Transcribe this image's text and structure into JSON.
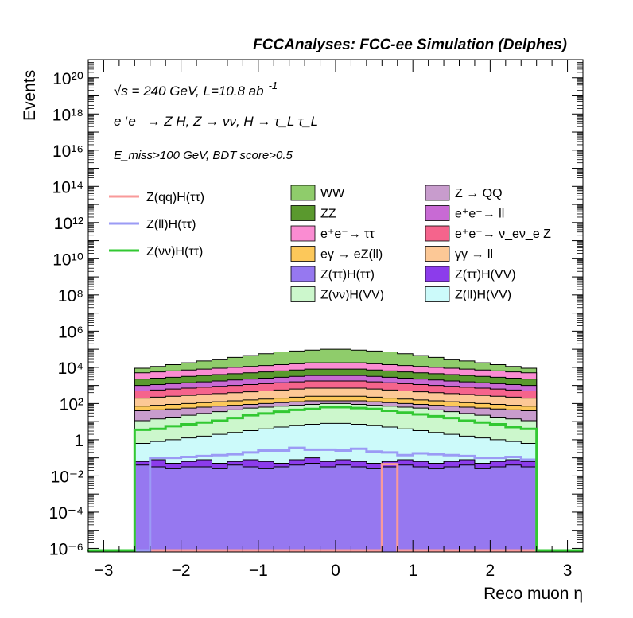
{
  "header": {
    "title": "FCCAnalyses: FCC-ee Simulation (Delphes)",
    "line1": "√s = 240 GeV, L=10.8 ab",
    "line1_sup": "-1",
    "line2": "e⁺e⁻ → Z H, Z → νν, H → τ_L τ_L",
    "line3": "E_miss>100 GeV, BDT score>0.5"
  },
  "chart_data": {
    "type": "bar",
    "stacked": true,
    "log_y": true,
    "xlabel": "Reco muon η",
    "ylabel": "Events",
    "xlim": [
      -3.2,
      3.2
    ],
    "ylim_log10": [
      -6.2,
      21
    ],
    "x_ticks": [
      "−3",
      "−2",
      "−1",
      "0",
      "1",
      "2",
      "3"
    ],
    "y_ticks": [
      "10⁻⁶",
      "10⁻⁴",
      "10⁻²",
      "1",
      "10²",
      "10⁴",
      "10⁶",
      "10⁸",
      "10¹⁰",
      "10¹²",
      "10¹⁴",
      "10¹⁶",
      "10¹⁸",
      "10²⁰"
    ],
    "bin_edges": [
      -2.6,
      -2.4,
      -2.2,
      -2.0,
      -1.8,
      -1.6,
      -1.4,
      -1.2,
      -1.0,
      -0.8,
      -0.6,
      -0.4,
      -0.2,
      0.0,
      0.2,
      0.4,
      0.6,
      0.8,
      1.0,
      1.2,
      1.4,
      1.6,
      1.8,
      2.0,
      2.2,
      2.4,
      2.6
    ],
    "stack_order_bottom_to_top": [
      "Z(ττ)H(ττ)",
      "Z(ττ)H(VV)",
      "Z(ll)H(VV)",
      "Z(νν)H(VV)",
      "Z → QQ",
      "eγ → eZ(ll)",
      "γγ → ll",
      "e⁺e⁻→ ν_eν_e Z",
      "e⁺e⁻→ ll",
      "ZZ",
      "e⁺e⁻→ ττ",
      "WW"
    ],
    "stack_cumulative_log10": [
      [
        -1.4,
        -1.5,
        -1.6,
        -1.5,
        -1.5,
        -1.6,
        -1.4,
        -1.5,
        -1.6,
        -1.5,
        -1.4,
        -1.3,
        -1.5,
        -1.4,
        -1.5,
        -1.6,
        -1.5,
        -1.4,
        -1.5,
        -1.6,
        -1.5,
        -1.4,
        -1.6,
        -1.5,
        -1.4,
        -1.5
      ],
      [
        -1.2,
        -1.1,
        -1.3,
        -1.2,
        -1.1,
        -1.3,
        -1.2,
        -1.1,
        -1.2,
        -1.3,
        -1.1,
        -1.0,
        -1.2,
        -1.1,
        -1.2,
        -1.3,
        -1.2,
        -1.1,
        -1.2,
        -1.3,
        -1.2,
        -1.1,
        -1.3,
        -1.2,
        -1.1,
        -1.2
      ],
      [
        -0.2,
        -0.1,
        0.0,
        0.1,
        0.2,
        0.3,
        0.4,
        0.5,
        0.6,
        0.7,
        0.8,
        0.85,
        0.9,
        0.9,
        0.85,
        0.8,
        0.7,
        0.6,
        0.5,
        0.4,
        0.3,
        0.2,
        0.1,
        0.0,
        -0.1,
        -0.2
      ],
      [
        1.05,
        1.15,
        1.25,
        1.35,
        1.45,
        1.55,
        1.65,
        1.75,
        1.8,
        1.85,
        1.9,
        1.95,
        2.0,
        2.0,
        1.95,
        1.9,
        1.85,
        1.8,
        1.75,
        1.65,
        1.55,
        1.45,
        1.35,
        1.25,
        1.15,
        1.05
      ],
      [
        1.6,
        1.65,
        1.7,
        1.75,
        1.8,
        1.85,
        1.9,
        1.95,
        2.0,
        2.05,
        2.1,
        2.15,
        2.15,
        2.15,
        2.15,
        2.1,
        2.05,
        2.0,
        1.95,
        1.9,
        1.85,
        1.8,
        1.75,
        1.7,
        1.65,
        1.6
      ],
      [
        1.85,
        1.9,
        1.95,
        2.0,
        2.05,
        2.1,
        2.15,
        2.2,
        2.25,
        2.3,
        2.35,
        2.4,
        2.4,
        2.4,
        2.4,
        2.35,
        2.3,
        2.25,
        2.2,
        2.15,
        2.1,
        2.05,
        2.0,
        1.95,
        1.9,
        1.85
      ],
      [
        2.3,
        2.35,
        2.4,
        2.45,
        2.5,
        2.55,
        2.6,
        2.65,
        2.7,
        2.75,
        2.8,
        2.85,
        2.85,
        2.85,
        2.85,
        2.8,
        2.75,
        2.7,
        2.65,
        2.6,
        2.55,
        2.5,
        2.45,
        2.4,
        2.35,
        2.3
      ],
      [
        2.7,
        2.75,
        2.8,
        2.85,
        2.9,
        2.95,
        3.0,
        3.05,
        3.1,
        3.15,
        3.2,
        3.25,
        3.25,
        3.25,
        3.25,
        3.2,
        3.15,
        3.1,
        3.05,
        3.0,
        2.95,
        2.9,
        2.85,
        2.8,
        2.75,
        2.7
      ],
      [
        3.0,
        3.05,
        3.1,
        3.15,
        3.2,
        3.25,
        3.3,
        3.35,
        3.4,
        3.45,
        3.5,
        3.55,
        3.55,
        3.55,
        3.55,
        3.5,
        3.45,
        3.4,
        3.35,
        3.3,
        3.25,
        3.2,
        3.15,
        3.1,
        3.05,
        3.0
      ],
      [
        3.35,
        3.4,
        3.45,
        3.5,
        3.55,
        3.6,
        3.65,
        3.7,
        3.75,
        3.8,
        3.85,
        3.9,
        3.9,
        3.9,
        3.9,
        3.85,
        3.8,
        3.75,
        3.7,
        3.65,
        3.6,
        3.55,
        3.5,
        3.45,
        3.4,
        3.35
      ],
      [
        3.7,
        3.75,
        3.8,
        3.85,
        3.9,
        3.95,
        4.0,
        4.05,
        4.1,
        4.15,
        4.2,
        4.25,
        4.25,
        4.25,
        4.25,
        4.2,
        4.15,
        4.1,
        4.05,
        4.0,
        3.95,
        3.9,
        3.85,
        3.8,
        3.75,
        3.7
      ],
      [
        3.95,
        4.05,
        4.15,
        4.25,
        4.35,
        4.45,
        4.55,
        4.65,
        4.75,
        4.85,
        4.9,
        4.95,
        5.0,
        5.0,
        4.95,
        4.9,
        4.85,
        4.75,
        4.65,
        4.55,
        4.45,
        4.35,
        4.25,
        4.15,
        4.05,
        3.95
      ]
    ],
    "overlay_log10": {
      "Z(qq)H(ττ)": [
        -6.2,
        -6.2,
        -6.2,
        -6.2,
        -6.2,
        -6.2,
        -6.2,
        -6.2,
        -6.2,
        -6.2,
        -6.2,
        -6.2,
        -6.2,
        -6.2,
        -6.2,
        -6.2,
        -1.35,
        -6.2,
        -6.2,
        -6.2,
        -6.2,
        -6.2,
        -6.2,
        -6.2,
        -6.2,
        -6.2
      ],
      "Z(ll)H(ττ)": [
        -6.2,
        -1.0,
        -1.0,
        -0.95,
        -0.9,
        -0.85,
        -0.8,
        -0.7,
        -0.6,
        -0.6,
        -0.45,
        -0.55,
        -0.55,
        -0.6,
        -0.5,
        -0.65,
        -0.7,
        -0.85,
        -0.75,
        -0.8,
        -0.85,
        -0.9,
        -1.0,
        -1.0,
        -0.95,
        -1.1
      ],
      "Z(νν)H(ττ)": [
        0.55,
        0.6,
        0.75,
        0.85,
        0.95,
        1.05,
        1.2,
        1.35,
        1.45,
        1.55,
        1.65,
        1.7,
        1.8,
        1.8,
        1.75,
        1.7,
        1.6,
        1.5,
        1.4,
        1.3,
        1.2,
        1.05,
        0.95,
        0.85,
        0.7,
        0.6
      ]
    },
    "legend_lines": [
      {
        "name": "Z(qq)H(ττ)",
        "color": "#f99a9a"
      },
      {
        "name": "Z(ll)H(ττ)",
        "color": "#9b9bf5"
      },
      {
        "name": "Z(νν)H(ττ)",
        "color": "#32c832"
      }
    ],
    "legend_fills": [
      {
        "name": "WW",
        "color": "#8fcc6b"
      },
      {
        "name": "Z → QQ",
        "color": "#c89ccd"
      },
      {
        "name": "ZZ",
        "color": "#5a992e"
      },
      {
        "name": "e⁺e⁻→ ll",
        "color": "#c86ad4"
      },
      {
        "name": "e⁺e⁻→ ττ",
        "color": "#fa8cd2"
      },
      {
        "name": "e⁺e⁻→ ν_eν_e Z",
        "color": "#f5648c"
      },
      {
        "name": "eγ → eZ(ll)",
        "color": "#fcc85a"
      },
      {
        "name": "γγ → ll",
        "color": "#fcc896"
      },
      {
        "name": "Z(ττ)H(ττ)",
        "color": "#9678f0"
      },
      {
        "name": "Z(ττ)H(VV)",
        "color": "#8c3ceb"
      },
      {
        "name": "Z(νν)H(VV)",
        "color": "#ccf7cc"
      },
      {
        "name": "Z(ll)H(VV)",
        "color": "#ccfafa"
      }
    ],
    "stack_colors": [
      "#9678f0",
      "#8c3ceb",
      "#ccfafa",
      "#ccf7cc",
      "#c89ccd",
      "#fcc85a",
      "#fcc896",
      "#f5648c",
      "#c86ad4",
      "#5a992e",
      "#fa8cd2",
      "#8fcc6b"
    ]
  }
}
